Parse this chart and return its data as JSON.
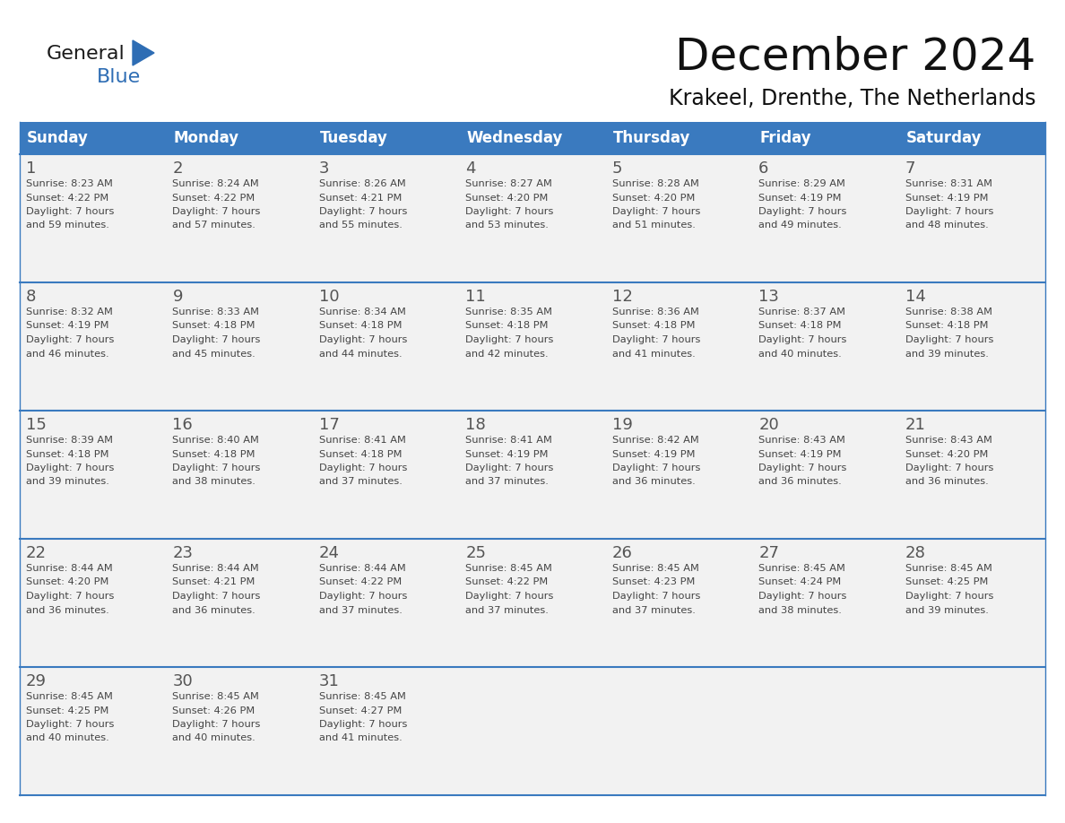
{
  "title": "December 2024",
  "subtitle": "Krakeel, Drenthe, The Netherlands",
  "header_color": "#3a7abf",
  "header_text_color": "#ffffff",
  "header_font_size": 12,
  "title_font_size": 36,
  "subtitle_font_size": 17,
  "days_of_week": [
    "Sunday",
    "Monday",
    "Tuesday",
    "Wednesday",
    "Thursday",
    "Friday",
    "Saturday"
  ],
  "cell_bg_color": "#f2f2f2",
  "day_number_color": "#555555",
  "text_color": "#444444",
  "line_color": "#3a7abf",
  "logo_color_general": "#1a1a1a",
  "logo_color_blue": "#2e6db4",
  "calendar_data": [
    [
      {
        "day": 1,
        "sunrise": "8:23 AM",
        "sunset": "4:22 PM",
        "daylight_hours": 7,
        "daylight_minutes": 59
      },
      {
        "day": 2,
        "sunrise": "8:24 AM",
        "sunset": "4:22 PM",
        "daylight_hours": 7,
        "daylight_minutes": 57
      },
      {
        "day": 3,
        "sunrise": "8:26 AM",
        "sunset": "4:21 PM",
        "daylight_hours": 7,
        "daylight_minutes": 55
      },
      {
        "day": 4,
        "sunrise": "8:27 AM",
        "sunset": "4:20 PM",
        "daylight_hours": 7,
        "daylight_minutes": 53
      },
      {
        "day": 5,
        "sunrise": "8:28 AM",
        "sunset": "4:20 PM",
        "daylight_hours": 7,
        "daylight_minutes": 51
      },
      {
        "day": 6,
        "sunrise": "8:29 AM",
        "sunset": "4:19 PM",
        "daylight_hours": 7,
        "daylight_minutes": 49
      },
      {
        "day": 7,
        "sunrise": "8:31 AM",
        "sunset": "4:19 PM",
        "daylight_hours": 7,
        "daylight_minutes": 48
      }
    ],
    [
      {
        "day": 8,
        "sunrise": "8:32 AM",
        "sunset": "4:19 PM",
        "daylight_hours": 7,
        "daylight_minutes": 46
      },
      {
        "day": 9,
        "sunrise": "8:33 AM",
        "sunset": "4:18 PM",
        "daylight_hours": 7,
        "daylight_minutes": 45
      },
      {
        "day": 10,
        "sunrise": "8:34 AM",
        "sunset": "4:18 PM",
        "daylight_hours": 7,
        "daylight_minutes": 44
      },
      {
        "day": 11,
        "sunrise": "8:35 AM",
        "sunset": "4:18 PM",
        "daylight_hours": 7,
        "daylight_minutes": 42
      },
      {
        "day": 12,
        "sunrise": "8:36 AM",
        "sunset": "4:18 PM",
        "daylight_hours": 7,
        "daylight_minutes": 41
      },
      {
        "day": 13,
        "sunrise": "8:37 AM",
        "sunset": "4:18 PM",
        "daylight_hours": 7,
        "daylight_minutes": 40
      },
      {
        "day": 14,
        "sunrise": "8:38 AM",
        "sunset": "4:18 PM",
        "daylight_hours": 7,
        "daylight_minutes": 39
      }
    ],
    [
      {
        "day": 15,
        "sunrise": "8:39 AM",
        "sunset": "4:18 PM",
        "daylight_hours": 7,
        "daylight_minutes": 39
      },
      {
        "day": 16,
        "sunrise": "8:40 AM",
        "sunset": "4:18 PM",
        "daylight_hours": 7,
        "daylight_minutes": 38
      },
      {
        "day": 17,
        "sunrise": "8:41 AM",
        "sunset": "4:18 PM",
        "daylight_hours": 7,
        "daylight_minutes": 37
      },
      {
        "day": 18,
        "sunrise": "8:41 AM",
        "sunset": "4:19 PM",
        "daylight_hours": 7,
        "daylight_minutes": 37
      },
      {
        "day": 19,
        "sunrise": "8:42 AM",
        "sunset": "4:19 PM",
        "daylight_hours": 7,
        "daylight_minutes": 36
      },
      {
        "day": 20,
        "sunrise": "8:43 AM",
        "sunset": "4:19 PM",
        "daylight_hours": 7,
        "daylight_minutes": 36
      },
      {
        "day": 21,
        "sunrise": "8:43 AM",
        "sunset": "4:20 PM",
        "daylight_hours": 7,
        "daylight_minutes": 36
      }
    ],
    [
      {
        "day": 22,
        "sunrise": "8:44 AM",
        "sunset": "4:20 PM",
        "daylight_hours": 7,
        "daylight_minutes": 36
      },
      {
        "day": 23,
        "sunrise": "8:44 AM",
        "sunset": "4:21 PM",
        "daylight_hours": 7,
        "daylight_minutes": 36
      },
      {
        "day": 24,
        "sunrise": "8:44 AM",
        "sunset": "4:22 PM",
        "daylight_hours": 7,
        "daylight_minutes": 37
      },
      {
        "day": 25,
        "sunrise": "8:45 AM",
        "sunset": "4:22 PM",
        "daylight_hours": 7,
        "daylight_minutes": 37
      },
      {
        "day": 26,
        "sunrise": "8:45 AM",
        "sunset": "4:23 PM",
        "daylight_hours": 7,
        "daylight_minutes": 37
      },
      {
        "day": 27,
        "sunrise": "8:45 AM",
        "sunset": "4:24 PM",
        "daylight_hours": 7,
        "daylight_minutes": 38
      },
      {
        "day": 28,
        "sunrise": "8:45 AM",
        "sunset": "4:25 PM",
        "daylight_hours": 7,
        "daylight_minutes": 39
      }
    ],
    [
      {
        "day": 29,
        "sunrise": "8:45 AM",
        "sunset": "4:25 PM",
        "daylight_hours": 7,
        "daylight_minutes": 40
      },
      {
        "day": 30,
        "sunrise": "8:45 AM",
        "sunset": "4:26 PM",
        "daylight_hours": 7,
        "daylight_minutes": 40
      },
      {
        "day": 31,
        "sunrise": "8:45 AM",
        "sunset": "4:27 PM",
        "daylight_hours": 7,
        "daylight_minutes": 41
      },
      null,
      null,
      null,
      null
    ]
  ]
}
